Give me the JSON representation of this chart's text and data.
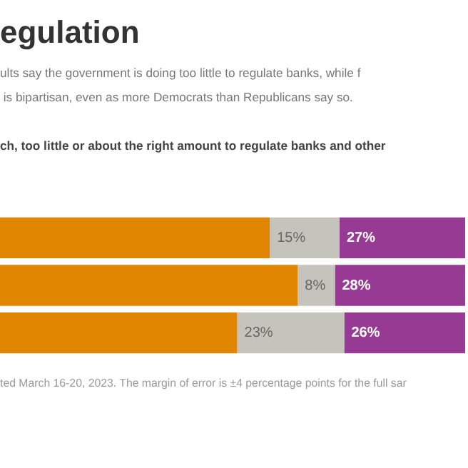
{
  "chart_data": {
    "type": "bar",
    "orientation": "horizontal",
    "stacked": true,
    "title": "egulation",
    "subtitle": "ults say the government is doing too little to regulate banks, while f\n is bipartisan, even as more Democrats than Republicans say so.",
    "annotations": [
      "ch, too little or about the right amount to regulate banks and other",
      "ted March 16-20, 2023. The margin of error is ±4 percentage points for the full sar"
    ],
    "categories": [
      null,
      null,
      null
    ],
    "tick_labels": false,
    "legend": false,
    "series": [
      {
        "color": "#e08600",
        "values": [
          58,
          64,
          51
        ],
        "value_labels": [
          null,
          null,
          null
        ]
      },
      {
        "color": "#c4c4bc",
        "values": [
          15,
          8,
          23
        ],
        "value_labels": [
          "15%",
          "8%",
          "23%"
        ]
      },
      {
        "color": "#973a93",
        "values": [
          27,
          28,
          26
        ],
        "value_labels": [
          "27%",
          "28%",
          "26%"
        ]
      }
    ]
  }
}
